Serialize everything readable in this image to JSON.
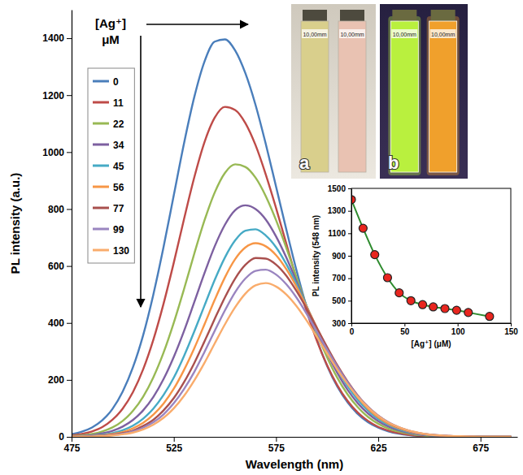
{
  "chart_data": [
    {
      "type": "line",
      "x_label": "Wavelength (nm)",
      "y_label": "PL intensity (a.u.)",
      "legend": "top-left",
      "legend_title": "[Ag⁺]\nμM",
      "annotations": [
        "a",
        "b"
      ],
      "cuvette_label": "10,00mm",
      "grid": false,
      "xlim": [
        475,
        693
      ],
      "ylim": [
        0,
        1500
      ],
      "xticks": [
        475,
        525,
        575,
        625,
        675
      ],
      "yticks": [
        0,
        200,
        400,
        600,
        800,
        1000,
        1200,
        1400
      ],
      "x": [
        475,
        480,
        485,
        490,
        495,
        500,
        505,
        510,
        515,
        520,
        525,
        530,
        535,
        540,
        545,
        550,
        555,
        560,
        565,
        570,
        575,
        580,
        585,
        590,
        595,
        600,
        605,
        610,
        615,
        620,
        625,
        630,
        635,
        640,
        645,
        650,
        655,
        660,
        665,
        670,
        675,
        680,
        685,
        690
      ],
      "series": [
        {
          "name": "0",
          "color": "#4a7ebb",
          "values": [
            9,
            18,
            33,
            58,
            98,
            159,
            244,
            357,
            500,
            667,
            849,
            1031,
            1193,
            1318,
            1388,
            1396,
            1357,
            1277,
            1165,
            1028,
            879,
            729,
            585,
            454,
            342,
            249,
            176,
            121,
            80,
            51,
            32,
            19,
            11,
            6,
            3,
            2,
            1,
            0,
            0,
            0,
            0,
            0,
            0,
            0
          ]
        },
        {
          "name": "11",
          "color": "#be4b48",
          "values": [
            5,
            10,
            19,
            34,
            60,
            99,
            157,
            237,
            341,
            468,
            612,
            765,
            911,
            1035,
            1121,
            1159,
            1148,
            1102,
            1024,
            921,
            804,
            679,
            555,
            440,
            337,
            251,
            181,
            126,
            85,
            56,
            35,
            22,
            13,
            7,
            4,
            2,
            1,
            0,
            0,
            0,
            0,
            0,
            0,
            0
          ]
        },
        {
          "name": "22",
          "color": "#98b954",
          "values": [
            3,
            5,
            10,
            19,
            33,
            56,
            91,
            141,
            209,
            296,
            401,
            519,
            643,
            760,
            858,
            927,
            957,
            948,
            910,
            845,
            761,
            664,
            560,
            458,
            363,
            279,
            207,
            149,
            104,
            70,
            46,
            29,
            18,
            11,
            6,
            3,
            2,
            1,
            0,
            0,
            0,
            0,
            0,
            0
          ]
        },
        {
          "name": "34",
          "color": "#7d60a0",
          "values": [
            2,
            3,
            6,
            12,
            21,
            36,
            59,
            93,
            140,
            203,
            281,
            372,
            473,
            575,
            669,
            745,
            796,
            813,
            800,
            763,
            704,
            630,
            546,
            458,
            372,
            293,
            224,
            165,
            118,
            82,
            55,
            36,
            23,
            14,
            8,
            5,
            3,
            1,
            1,
            0,
            0,
            0,
            0,
            0
          ]
        },
        {
          "name": "45",
          "color": "#46aac5",
          "values": [
            1,
            2,
            4,
            7,
            13,
            23,
            39,
            64,
            99,
            147,
            208,
            284,
            370,
            461,
            551,
            630,
            690,
            724,
            729,
            707,
            666,
            607,
            536,
            458,
            380,
            305,
            237,
            178,
            130,
            92,
            63,
            42,
            27,
            17,
            10,
            6,
            3,
            2,
            1,
            0,
            0,
            0,
            0,
            0
          ]
        },
        {
          "name": "56",
          "color": "#f79646",
          "values": [
            1,
            1,
            3,
            5,
            10,
            17,
            30,
            49,
            78,
            117,
            169,
            235,
            311,
            395,
            481,
            560,
            624,
            665,
            680,
            669,
            638,
            589,
            527,
            456,
            383,
            311,
            245,
            187,
            138,
            99,
            68,
            46,
            30,
            19,
            11,
            7,
            4,
            2,
            1,
            1,
            0,
            0,
            0,
            0
          ]
        },
        {
          "name": "77",
          "color": "#a9504e",
          "values": [
            0,
            1,
            2,
            4,
            7,
            13,
            22,
            38,
            60,
            93,
            136,
            192,
            259,
            335,
            414,
            490,
            556,
            604,
            628,
            626,
            605,
            566,
            512,
            450,
            382,
            315,
            251,
            194,
            145,
            105,
            74,
            50,
            33,
            21,
            13,
            8,
            5,
            3,
            1,
            1,
            0,
            0,
            0,
            0
          ]
        },
        {
          "name": "99",
          "color": "#9a85c0",
          "values": [
            0,
            1,
            1,
            3,
            6,
            11,
            19,
            32,
            51,
            79,
            118,
            168,
            228,
            298,
            372,
            444,
            508,
            556,
            583,
            587,
            570,
            536,
            489,
            432,
            369,
            306,
            246,
            191,
            143,
            105,
            74,
            51,
            34,
            22,
            13,
            8,
            5,
            3,
            1,
            1,
            0,
            0,
            0,
            0
          ]
        },
        {
          "name": "130",
          "color": "#f9ac6c",
          "values": [
            0,
            1,
            1,
            2,
            5,
            9,
            15,
            26,
            43,
            67,
            100,
            144,
            198,
            260,
            328,
            395,
            455,
            503,
            532,
            540,
            528,
            500,
            459,
            408,
            351,
            293,
            236,
            185,
            140,
            103,
            73,
            50,
            34,
            22,
            14,
            8,
            5,
            3,
            2,
            1,
            0,
            0,
            0,
            0
          ]
        }
      ]
    },
    {
      "type": "line",
      "x_label": "[Ag⁺] (μM)",
      "y_label": "PL intensity (548 nm)",
      "xlim": [
        0,
        150
      ],
      "ylim": [
        300,
        1500
      ],
      "xticks": [
        0,
        50,
        100,
        150
      ],
      "yticks": [
        300,
        500,
        700,
        900,
        1100,
        1300,
        1500
      ],
      "x": [
        0,
        11,
        22,
        34,
        45,
        56,
        67,
        77,
        88,
        99,
        110,
        130
      ],
      "series": [
        {
          "type": "line",
          "color": "#2e8b2e",
          "values": [
            1400,
            1145,
            910,
            705,
            570,
            500,
            465,
            445,
            430,
            415,
            395,
            360
          ]
        },
        {
          "type": "scatter",
          "color": "#e8261f",
          "marker": "circle",
          "values": [
            1400,
            1145,
            910,
            705,
            570,
            500,
            465,
            445,
            430,
            415,
            395,
            360
          ]
        }
      ]
    }
  ]
}
